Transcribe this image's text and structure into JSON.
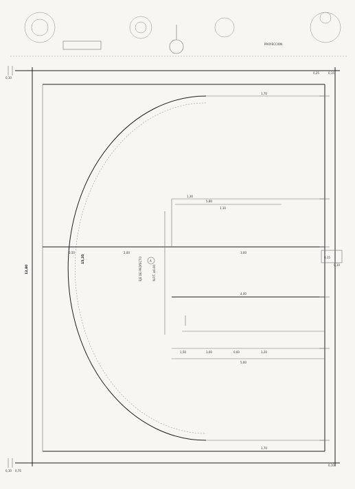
{
  "dimensions": {
    "total_height": "12,80",
    "radius": "15,35",
    "top_left": "0,10",
    "bottom_left": "0,10",
    "bottom_left_2": "0,75",
    "right_a": "0,25",
    "right_b": "0,15",
    "right_c": "0,10",
    "seg_a": "0,50",
    "seg_b": "0,15",
    "seg_c": "1,50",
    "seg_d": "1,00",
    "seg_e": "0,60",
    "seg_f": "1,70",
    "seg_g": "1,20",
    "seg_h": "3,00",
    "seg_i": "2,00",
    "seg_j": "5,00",
    "seg_k": "0,10",
    "mid_dim": "1,10",
    "court_a": "1,30",
    "court_b": "5,80",
    "court_c": "4,00"
  },
  "labels": {
    "center_note": "EJE DE PROYECTO",
    "center_mark": "A",
    "center_note_2": "N.P.T. ±0.00",
    "top_note": "PROYECCION"
  }
}
